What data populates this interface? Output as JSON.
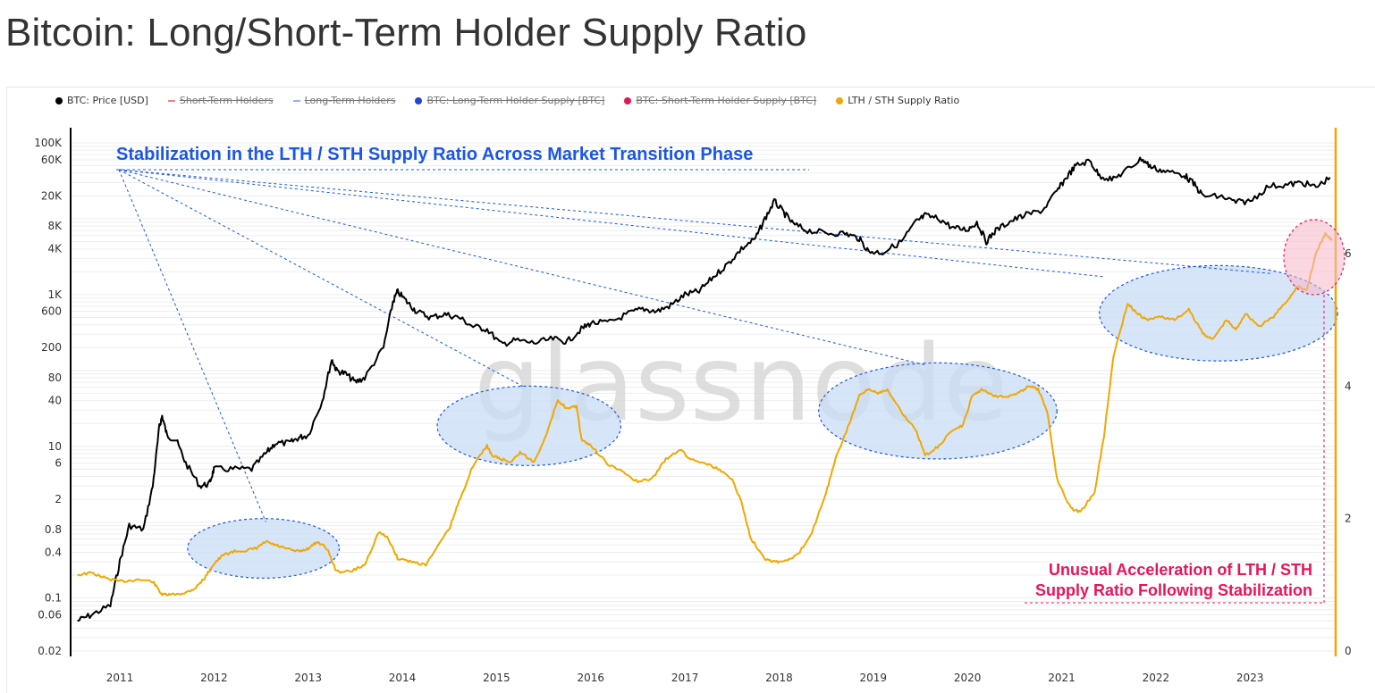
{
  "page": {
    "title": "Bitcoin: Long/Short-Term Holder Supply Ratio"
  },
  "legend": [
    {
      "label": "BTC: Price [USD]",
      "color": "#000000",
      "enabled": true,
      "dot": "circle"
    },
    {
      "label": "Short-Term Holders",
      "color": "#f08080",
      "enabled": false,
      "dot": "line"
    },
    {
      "label": "Long-Term Holders",
      "color": "#8ab4f8",
      "enabled": false,
      "dot": "line"
    },
    {
      "label": "BTC: Long-Term Holder Supply [BTC]",
      "color": "#2343d9",
      "enabled": false,
      "dot": "circle"
    },
    {
      "label": "BTC: Short-Term Holder Supply [BTC]",
      "color": "#e8145a",
      "enabled": false,
      "dot": "circle"
    },
    {
      "label": "LTH / STH Supply Ratio",
      "color": "#f0a800",
      "enabled": true,
      "dot": "circle"
    }
  ],
  "annotations": {
    "top": "Stabilization in the LTH / STH Supply Ratio Across Market Transition Phase",
    "bottom_line1": "Unusual Acceleration of LTH / STH",
    "bottom_line2": "Supply Ratio Following Stabilization"
  },
  "watermark": "glassnode",
  "colors": {
    "price": "#000000",
    "ratio": "#f0a800",
    "accent_blue": "#1a56e8",
    "accent_pink": "#e8145a",
    "ellipse_fill": "#c9dcf7"
  },
  "chart_data": {
    "type": "line",
    "x_ticks": [
      "2011",
      "2012",
      "2013",
      "2014",
      "2015",
      "2016",
      "2017",
      "2018",
      "2019",
      "2020",
      "2021",
      "2022",
      "2023"
    ],
    "y_left_ticks": [
      "100K",
      "60K",
      "20K",
      "8K",
      "4K",
      "1K",
      "600",
      "200",
      "80",
      "40",
      "10",
      "6",
      "2",
      "0.8",
      "0.4",
      "0.1",
      "0.06",
      "0.02"
    ],
    "y_left_scale": "log",
    "y_right_ticks": [
      "6",
      "4",
      "2",
      "0"
    ],
    "y_right_range": [
      0,
      6.5
    ],
    "series": [
      {
        "name": "BTC: Price [USD]",
        "axis": "left",
        "color": "#000000",
        "points": [
          [
            2010.55,
            0.05
          ],
          [
            2010.7,
            0.06
          ],
          [
            2010.9,
            0.08
          ],
          [
            2011.0,
            0.3
          ],
          [
            2011.1,
            0.9
          ],
          [
            2011.25,
            0.8
          ],
          [
            2011.35,
            3
          ],
          [
            2011.42,
            18
          ],
          [
            2011.45,
            25
          ],
          [
            2011.5,
            14
          ],
          [
            2011.6,
            12
          ],
          [
            2011.7,
            6
          ],
          [
            2011.85,
            3
          ],
          [
            2011.95,
            3.2
          ],
          [
            2012.0,
            5
          ],
          [
            2012.2,
            5
          ],
          [
            2012.4,
            5
          ],
          [
            2012.55,
            8
          ],
          [
            2012.65,
            11
          ],
          [
            2012.8,
            11
          ],
          [
            2012.9,
            13
          ],
          [
            2013.0,
            14
          ],
          [
            2013.15,
            40
          ],
          [
            2013.25,
            140
          ],
          [
            2013.3,
            100
          ],
          [
            2013.4,
            90
          ],
          [
            2013.5,
            70
          ],
          [
            2013.6,
            80
          ],
          [
            2013.8,
            200
          ],
          [
            2013.9,
            800
          ],
          [
            2013.95,
            1100
          ],
          [
            2014.05,
            800
          ],
          [
            2014.15,
            600
          ],
          [
            2014.3,
            500
          ],
          [
            2014.45,
            550
          ],
          [
            2014.6,
            500
          ],
          [
            2014.75,
            380
          ],
          [
            2014.9,
            350
          ],
          [
            2015.05,
            220
          ],
          [
            2015.2,
            250
          ],
          [
            2015.4,
            230
          ],
          [
            2015.6,
            260
          ],
          [
            2015.75,
            240
          ],
          [
            2015.9,
            350
          ],
          [
            2016.0,
            420
          ],
          [
            2016.2,
            430
          ],
          [
            2016.4,
            560
          ],
          [
            2016.55,
            650
          ],
          [
            2016.7,
            600
          ],
          [
            2016.85,
            720
          ],
          [
            2017.0,
            1000
          ],
          [
            2017.15,
            1100
          ],
          [
            2017.3,
            1700
          ],
          [
            2017.45,
            2500
          ],
          [
            2017.6,
            4000
          ],
          [
            2017.75,
            5500
          ],
          [
            2017.85,
            10000
          ],
          [
            2017.95,
            17000
          ],
          [
            2018.05,
            12000
          ],
          [
            2018.15,
            8500
          ],
          [
            2018.3,
            7000
          ],
          [
            2018.5,
            6500
          ],
          [
            2018.7,
            6400
          ],
          [
            2018.85,
            5500
          ],
          [
            2018.95,
            3700
          ],
          [
            2019.1,
            3600
          ],
          [
            2019.3,
            5000
          ],
          [
            2019.45,
            9000
          ],
          [
            2019.55,
            11000
          ],
          [
            2019.7,
            10000
          ],
          [
            2019.85,
            7500
          ],
          [
            2020.0,
            7200
          ],
          [
            2020.1,
            9000
          ],
          [
            2020.2,
            5000
          ],
          [
            2020.3,
            7000
          ],
          [
            2020.45,
            9200
          ],
          [
            2020.6,
            11000
          ],
          [
            2020.8,
            13000
          ],
          [
            2020.95,
            23000
          ],
          [
            2021.05,
            35000
          ],
          [
            2021.15,
            50000
          ],
          [
            2021.3,
            58000
          ],
          [
            2021.4,
            37000
          ],
          [
            2021.55,
            33000
          ],
          [
            2021.7,
            45000
          ],
          [
            2021.85,
            62000
          ],
          [
            2021.95,
            48000
          ],
          [
            2022.1,
            42000
          ],
          [
            2022.3,
            38000
          ],
          [
            2022.4,
            29000
          ],
          [
            2022.5,
            20000
          ],
          [
            2022.7,
            19500
          ],
          [
            2022.85,
            16500
          ],
          [
            2023.0,
            17000
          ],
          [
            2023.2,
            27000
          ],
          [
            2023.4,
            28000
          ],
          [
            2023.55,
            30000
          ],
          [
            2023.7,
            26000
          ],
          [
            2023.85,
            35000
          ]
        ]
      },
      {
        "name": "LTH / STH Supply Ratio",
        "axis": "right",
        "color": "#f0a800",
        "points": [
          [
            2010.55,
            1.15
          ],
          [
            2010.7,
            1.18
          ],
          [
            2010.85,
            1.1
          ],
          [
            2011.0,
            1.05
          ],
          [
            2011.2,
            1.08
          ],
          [
            2011.35,
            1.05
          ],
          [
            2011.45,
            0.85
          ],
          [
            2011.55,
            0.85
          ],
          [
            2011.7,
            0.88
          ],
          [
            2011.8,
            0.95
          ],
          [
            2011.9,
            1.1
          ],
          [
            2012.0,
            1.32
          ],
          [
            2012.1,
            1.45
          ],
          [
            2012.2,
            1.5
          ],
          [
            2012.35,
            1.52
          ],
          [
            2012.45,
            1.55
          ],
          [
            2012.55,
            1.65
          ],
          [
            2012.65,
            1.6
          ],
          [
            2012.75,
            1.55
          ],
          [
            2012.9,
            1.5
          ],
          [
            2013.0,
            1.55
          ],
          [
            2013.1,
            1.65
          ],
          [
            2013.2,
            1.55
          ],
          [
            2013.3,
            1.2
          ],
          [
            2013.45,
            1.2
          ],
          [
            2013.6,
            1.3
          ],
          [
            2013.75,
            1.8
          ],
          [
            2013.85,
            1.7
          ],
          [
            2013.95,
            1.4
          ],
          [
            2014.1,
            1.35
          ],
          [
            2014.25,
            1.3
          ],
          [
            2014.5,
            1.85
          ],
          [
            2014.6,
            2.25
          ],
          [
            2014.75,
            2.8
          ],
          [
            2014.9,
            3.1
          ],
          [
            2014.95,
            2.95
          ],
          [
            2015.05,
            2.9
          ],
          [
            2015.15,
            2.85
          ],
          [
            2015.25,
            3.0
          ],
          [
            2015.4,
            2.85
          ],
          [
            2015.55,
            3.35
          ],
          [
            2015.65,
            3.8
          ],
          [
            2015.75,
            3.65
          ],
          [
            2015.85,
            3.7
          ],
          [
            2015.9,
            3.2
          ],
          [
            2016.0,
            3.1
          ],
          [
            2016.2,
            2.8
          ],
          [
            2016.35,
            2.7
          ],
          [
            2016.5,
            2.55
          ],
          [
            2016.65,
            2.6
          ],
          [
            2016.8,
            2.9
          ],
          [
            2016.95,
            3.05
          ],
          [
            2017.05,
            2.9
          ],
          [
            2017.2,
            2.85
          ],
          [
            2017.35,
            2.75
          ],
          [
            2017.5,
            2.6
          ],
          [
            2017.6,
            2.25
          ],
          [
            2017.7,
            1.7
          ],
          [
            2017.85,
            1.4
          ],
          [
            2017.95,
            1.35
          ],
          [
            2018.05,
            1.35
          ],
          [
            2018.2,
            1.45
          ],
          [
            2018.35,
            1.8
          ],
          [
            2018.5,
            2.4
          ],
          [
            2018.6,
            2.9
          ],
          [
            2018.75,
            3.45
          ],
          [
            2018.85,
            3.85
          ],
          [
            2018.95,
            3.95
          ],
          [
            2019.05,
            3.9
          ],
          [
            2019.15,
            3.95
          ],
          [
            2019.3,
            3.6
          ],
          [
            2019.45,
            3.35
          ],
          [
            2019.55,
            2.95
          ],
          [
            2019.7,
            3.1
          ],
          [
            2019.85,
            3.35
          ],
          [
            2019.95,
            3.4
          ],
          [
            2020.05,
            3.85
          ],
          [
            2020.15,
            3.95
          ],
          [
            2020.3,
            3.85
          ],
          [
            2020.45,
            3.85
          ],
          [
            2020.55,
            3.9
          ],
          [
            2020.65,
            4.0
          ],
          [
            2020.75,
            3.95
          ],
          [
            2020.85,
            3.6
          ],
          [
            2020.95,
            2.6
          ],
          [
            2021.1,
            2.15
          ],
          [
            2021.2,
            2.1
          ],
          [
            2021.35,
            2.4
          ],
          [
            2021.45,
            3.25
          ],
          [
            2021.55,
            4.45
          ],
          [
            2021.7,
            5.25
          ],
          [
            2021.8,
            5.1
          ],
          [
            2021.9,
            5.0
          ],
          [
            2022.05,
            5.05
          ],
          [
            2022.2,
            5.0
          ],
          [
            2022.35,
            5.15
          ],
          [
            2022.5,
            4.8
          ],
          [
            2022.6,
            4.7
          ],
          [
            2022.75,
            5.0
          ],
          [
            2022.85,
            4.85
          ],
          [
            2022.95,
            5.1
          ],
          [
            2023.1,
            4.9
          ],
          [
            2023.25,
            5.05
          ],
          [
            2023.4,
            5.3
          ],
          [
            2023.5,
            5.5
          ],
          [
            2023.6,
            5.45
          ],
          [
            2023.7,
            6.0
          ],
          [
            2023.8,
            6.3
          ],
          [
            2023.87,
            6.2
          ]
        ]
      }
    ]
  }
}
